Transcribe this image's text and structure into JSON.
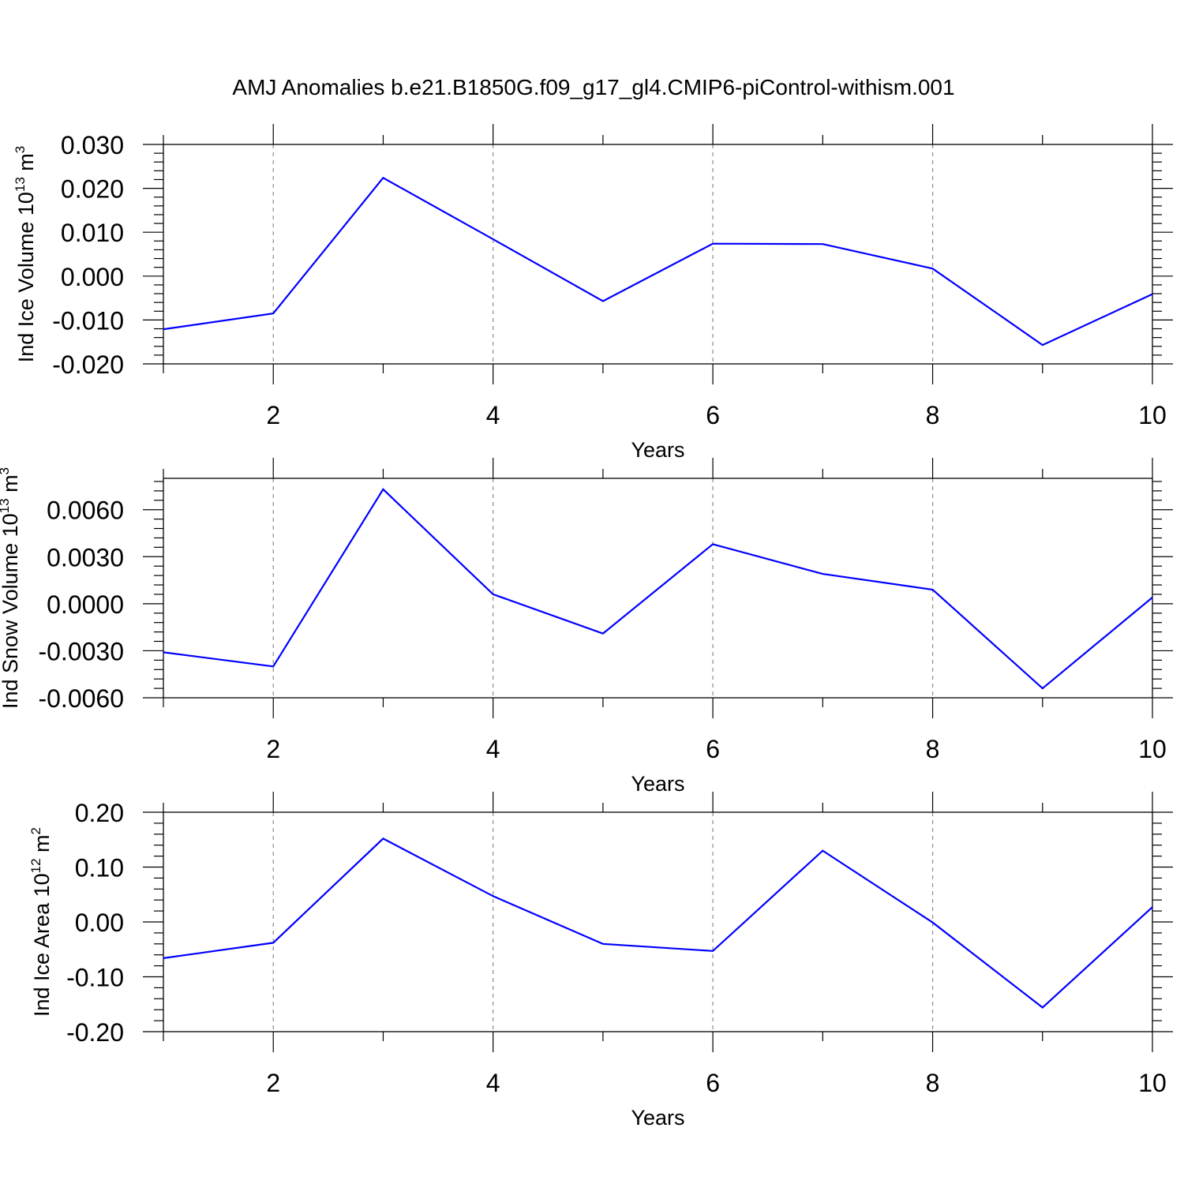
{
  "title": "AMJ Anomalies b.e21.B1850G.f09_g17_gl4.CMIP6-piControl-withism.001",
  "colors": {
    "series": "#0000ff",
    "grid": "#8c8c8c",
    "axis": "#000000"
  },
  "chart_data": [
    {
      "type": "line",
      "title": "AMJ Anomalies b.e21.B1850G.f09_g17_gl4.CMIP6-piControl-withism.001",
      "xlabel": "Years",
      "ylabel": {
        "text": "Ind Ice Volume 10",
        "exp": "13",
        "unit": " m",
        "unit_exp": "3"
      },
      "xlim": [
        1,
        10
      ],
      "ylim": [
        -0.02,
        0.03
      ],
      "xticks": [
        2,
        4,
        6,
        8,
        10
      ],
      "xtick_labels": [
        "2",
        "4",
        "6",
        "8",
        "10"
      ],
      "yticks": [
        -0.02,
        -0.01,
        0.0,
        0.01,
        0.02,
        0.03
      ],
      "ytick_labels": [
        "-0.020",
        "-0.010",
        "0.000",
        "0.010",
        "0.020",
        "0.030"
      ],
      "grid": "vertical dashed at major x ticks",
      "x": [
        1,
        2,
        3,
        4,
        5,
        6,
        7,
        8,
        9,
        10
      ],
      "y": [
        -0.0121,
        -0.0085,
        0.0224,
        0.0084,
        -0.0057,
        0.0074,
        0.0073,
        0.0017,
        -0.0157,
        -0.0041
      ]
    },
    {
      "type": "line",
      "xlabel": "Years",
      "ylabel": {
        "text": "Ind Snow Volume 10",
        "exp": "13",
        "unit": " m",
        "unit_exp": "3"
      },
      "xlim": [
        1,
        10
      ],
      "ylim": [
        -0.006,
        0.008
      ],
      "xticks": [
        2,
        4,
        6,
        8,
        10
      ],
      "xtick_labels": [
        "2",
        "4",
        "6",
        "8",
        "10"
      ],
      "yticks": [
        -0.006,
        -0.003,
        0.0,
        0.003,
        0.006
      ],
      "ytick_labels": [
        "-0.0060",
        "-0.0030",
        "0.0000",
        "0.0030",
        "0.0060"
      ],
      "grid": "vertical dashed at major x ticks",
      "x": [
        1,
        2,
        3,
        4,
        5,
        6,
        7,
        8,
        9,
        10
      ],
      "y": [
        -0.0031,
        -0.004,
        0.0073,
        0.0006,
        -0.0019,
        0.0038,
        0.0019,
        0.0009,
        -0.0054,
        0.0004
      ]
    },
    {
      "type": "line",
      "xlabel": "Years",
      "ylabel": {
        "text": "Ind Ice Area 10",
        "exp": "12",
        "unit": " m",
        "unit_exp": "2"
      },
      "xlim": [
        1,
        10
      ],
      "ylim": [
        -0.2,
        0.2
      ],
      "xticks": [
        2,
        4,
        6,
        8,
        10
      ],
      "xtick_labels": [
        "2",
        "4",
        "6",
        "8",
        "10"
      ],
      "yticks": [
        -0.2,
        -0.1,
        0.0,
        0.1,
        0.2
      ],
      "ytick_labels": [
        "-0.20",
        "-0.10",
        "0.00",
        "0.10",
        "0.20"
      ],
      "grid": "vertical dashed at major x ticks",
      "x": [
        1,
        2,
        3,
        4,
        5,
        6,
        7,
        8,
        9,
        10
      ],
      "y": [
        -0.066,
        -0.038,
        0.152,
        0.047,
        -0.04,
        -0.053,
        0.13,
        -0.001,
        -0.156,
        0.027
      ]
    }
  ]
}
